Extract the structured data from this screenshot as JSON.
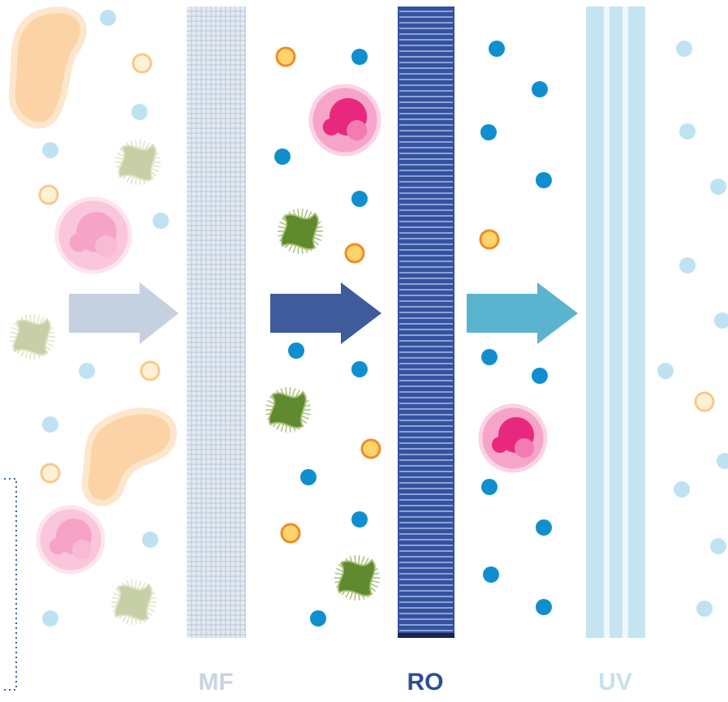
{
  "labels": {
    "mf": "MF",
    "ro": "RO",
    "uv": "UV"
  }
}
